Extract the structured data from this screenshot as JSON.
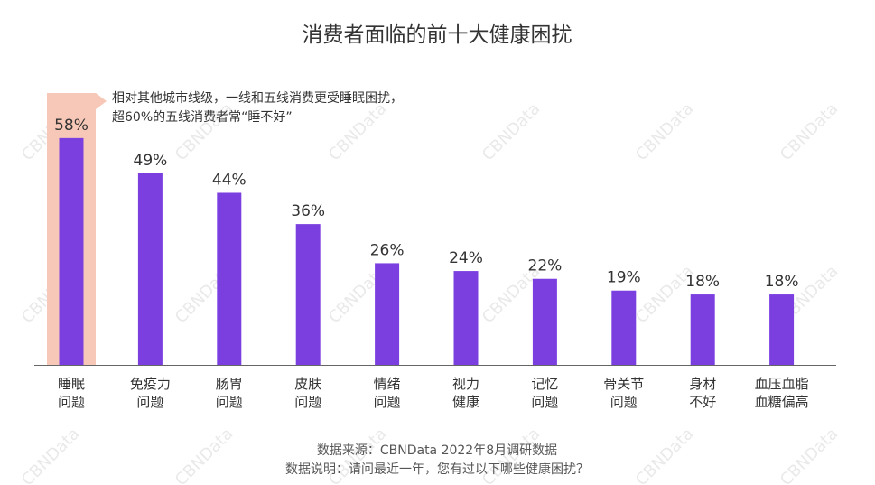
{
  "chart_data": {
    "type": "bar",
    "title": "消费者面临的前十大健康困扰",
    "categories": [
      [
        "睡眠",
        "问题"
      ],
      [
        "免疫力",
        "问题"
      ],
      [
        "肠胃",
        "问题"
      ],
      [
        "皮肤",
        "问题"
      ],
      [
        "情绪",
        "问题"
      ],
      [
        "视力",
        "健康"
      ],
      [
        "记忆",
        "问题"
      ],
      [
        "骨关节",
        "问题"
      ],
      [
        "身材",
        "不好"
      ],
      [
        "血压血脂",
        "血糖偏高"
      ]
    ],
    "values": [
      58,
      49,
      44,
      36,
      26,
      24,
      22,
      19,
      18,
      18
    ],
    "value_labels": [
      "58%",
      "49%",
      "44%",
      "36%",
      "26%",
      "24%",
      "22%",
      "19%",
      "18%",
      "18%"
    ],
    "ylim": [
      0,
      60
    ],
    "grid": false,
    "highlight_index": 0,
    "annotation": [
      "相对其他城市线级，一线和五线消费更受睡眠困扰，",
      "超60%的五线消费者常“睡不好”"
    ],
    "colors": {
      "bar": "#7B3FE0",
      "highlight": "#F7C8B7",
      "axis": "#666666"
    }
  },
  "footer": {
    "source": "数据来源：CBNData 2022年8月调研数据",
    "note": "数据说明：请问最近一年，您有过以下哪些健康困扰？"
  },
  "watermark": "CBNData"
}
